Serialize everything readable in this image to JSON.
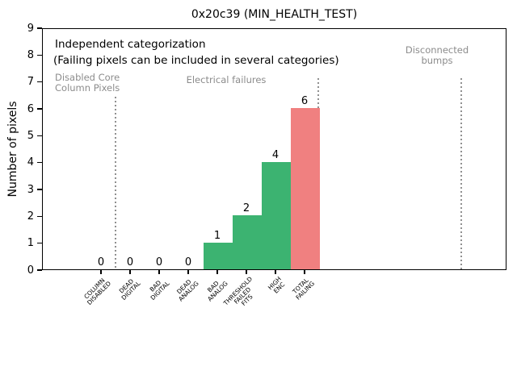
{
  "chart_data": {
    "type": "bar",
    "title": "0x20c39 (MIN_HEALTH_TEST)",
    "xlabel": "",
    "ylabel": "Number of pixels",
    "ylim": [
      0,
      9
    ],
    "y_ticks": [
      0,
      1,
      2,
      3,
      4,
      5,
      6,
      7,
      8,
      9
    ],
    "grid": false,
    "legend": null,
    "categories": [
      "COLUMN\nDISABLED",
      "DEAD\nDIGITAL",
      "BAD\nDIGITAL",
      "DEAD\nANALOG",
      "BAD\nANALOG",
      "THRESHOLD\nFAILED\nFITS",
      "HIGH\nENC",
      "TOTAL\nFAILING"
    ],
    "values": [
      0,
      0,
      0,
      0,
      1,
      2,
      4,
      6
    ],
    "bars": [
      {
        "category": "COLUMN\nDISABLED",
        "value": 0,
        "value_label": "0",
        "color": null
      },
      {
        "category": "DEAD\nDIGITAL",
        "value": 0,
        "value_label": "0",
        "color": null
      },
      {
        "category": "BAD\nDIGITAL",
        "value": 0,
        "value_label": "0",
        "color": null
      },
      {
        "category": "DEAD\nANALOG",
        "value": 0,
        "value_label": "0",
        "color": null
      },
      {
        "category": "BAD\nANALOG",
        "value": 1,
        "value_label": "1",
        "color": "#3CB371"
      },
      {
        "category": "THRESHOLD\nFAILED\nFITS",
        "value": 2,
        "value_label": "2",
        "color": "#3CB371"
      },
      {
        "category": "HIGH\nENC",
        "value": 4,
        "value_label": "4",
        "color": "#3CB371"
      },
      {
        "category": "TOTAL\nFAILING",
        "value": 6,
        "value_label": "6",
        "color": "#F08080"
      }
    ],
    "annotations": {
      "note_line1": "Independent categorization",
      "note_line2": "(Failing pixels can be included in several categories)",
      "sections": [
        {
          "label": "Disabled Core\nColumn Pixels"
        },
        {
          "label": "Electrical failures"
        },
        {
          "label": "Disconnected\nbumps"
        }
      ]
    },
    "colors": {
      "bar_green": "#3CB371",
      "bar_red": "#F08080",
      "section_text": "#8c8c8c",
      "separator": "#909090",
      "axis": "#000000"
    },
    "separator_style": "dotted"
  }
}
